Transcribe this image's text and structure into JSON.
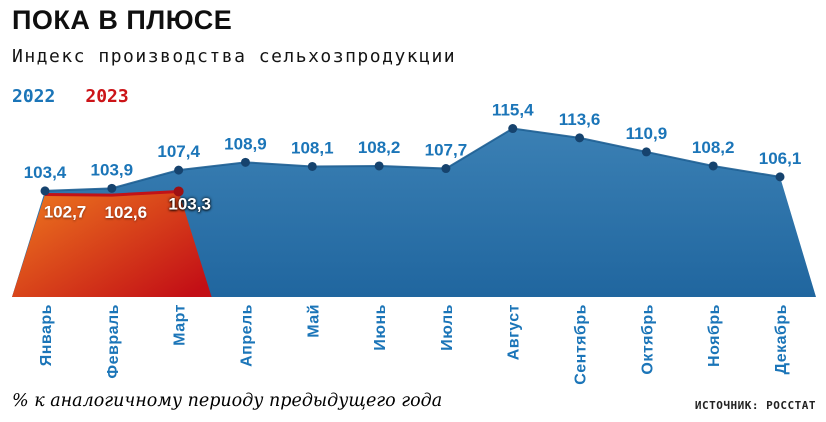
{
  "header": {
    "title": "ПОКА В ПЛЮСЕ",
    "subtitle": "Индекс производства сельхозпродукции"
  },
  "legend": {
    "items": [
      {
        "label": "2022",
        "color": "#1b75b8"
      },
      {
        "label": "2023",
        "color": "#cc1418"
      }
    ]
  },
  "footer": {
    "note": "% к аналогичному периоду предыдущего года",
    "source": "ИСТОЧНИК: РОССТАТ"
  },
  "chart_data": {
    "type": "area",
    "title": "ПОКА В ПЛЮСЕ",
    "subtitle": "Индекс производства сельхозпродукции",
    "unit_note": "% к аналогичному периоду предыдущего года",
    "source": "РОССТАТ",
    "categories": [
      "Январь",
      "Февраль",
      "Март",
      "Апрель",
      "Май",
      "Июнь",
      "Июль",
      "Август",
      "Сентябрь",
      "Октябрь",
      "Ноябрь",
      "Декабрь"
    ],
    "series": [
      {
        "name": "2022",
        "values": [
          103.4,
          103.9,
          107.4,
          108.9,
          108.1,
          108.2,
          107.7,
          115.4,
          113.6,
          110.9,
          108.2,
          106.1
        ]
      },
      {
        "name": "2023",
        "values": [
          102.7,
          102.6,
          103.3
        ]
      }
    ],
    "decimal_separator": ",",
    "ylim": [
      83,
      120
    ],
    "grid": false,
    "legend_position": "top-left",
    "x_axis_labels_rotated": true,
    "colors": {
      "area_2022_gradient": [
        "#3b80b4",
        "#20669f"
      ],
      "line_2022": "#1e5f94",
      "dot_2022": "#16436e",
      "label_2022": "#1b75b8",
      "area_2023_gradient": [
        "#ee7a1f",
        "#c30f16"
      ],
      "line_2023": "#c11217",
      "dot_2023": "#9e1013",
      "label_2023": "#ffffff",
      "axis_label": "#1b75b8"
    }
  }
}
